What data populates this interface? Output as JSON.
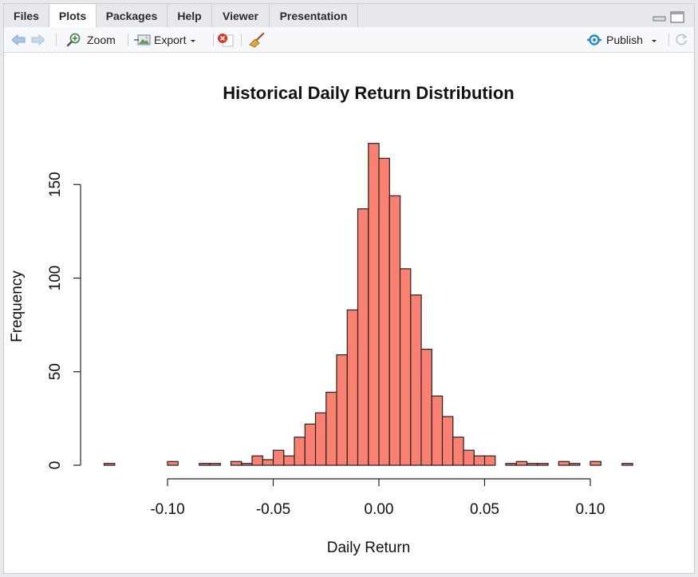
{
  "tabs": [
    {
      "label": "Files",
      "active": false
    },
    {
      "label": "Plots",
      "active": true
    },
    {
      "label": "Packages",
      "active": false
    },
    {
      "label": "Help",
      "active": false
    },
    {
      "label": "Viewer",
      "active": false
    },
    {
      "label": "Presentation",
      "active": false
    }
  ],
  "toolbar": {
    "zoom_label": "Zoom",
    "export_label": "Export",
    "publish_label": "Publish"
  },
  "colors": {
    "bar_fill": "#FA8072",
    "accent_blue": "#4a90d9"
  },
  "chart_data": {
    "type": "bar",
    "title": "Historical Daily Return Distribution",
    "xlabel": "Daily Return",
    "ylabel": "Frequency",
    "xlim": [
      -0.13,
      0.12
    ],
    "ylim": [
      0,
      172
    ],
    "bin_width": 0.005,
    "x_ticks": [
      -0.1,
      -0.05,
      0.0,
      0.05,
      0.1
    ],
    "x_tick_labels": [
      "-0.10",
      "-0.05",
      "0.00",
      "0.05",
      "0.10"
    ],
    "y_ticks": [
      0,
      50,
      100,
      150
    ],
    "y_tick_labels": [
      "0",
      "50",
      "100",
      "150"
    ],
    "bins": [
      {
        "x0": -0.13,
        "count": 1
      },
      {
        "x0": -0.1,
        "count": 2
      },
      {
        "x0": -0.085,
        "count": 1
      },
      {
        "x0": -0.08,
        "count": 1
      },
      {
        "x0": -0.07,
        "count": 2
      },
      {
        "x0": -0.065,
        "count": 1
      },
      {
        "x0": -0.06,
        "count": 5
      },
      {
        "x0": -0.055,
        "count": 3
      },
      {
        "x0": -0.05,
        "count": 8
      },
      {
        "x0": -0.045,
        "count": 5
      },
      {
        "x0": -0.04,
        "count": 15
      },
      {
        "x0": -0.035,
        "count": 22
      },
      {
        "x0": -0.03,
        "count": 28
      },
      {
        "x0": -0.025,
        "count": 39
      },
      {
        "x0": -0.02,
        "count": 59
      },
      {
        "x0": -0.015,
        "count": 83
      },
      {
        "x0": -0.01,
        "count": 137
      },
      {
        "x0": -0.005,
        "count": 172
      },
      {
        "x0": 0.0,
        "count": 164
      },
      {
        "x0": 0.005,
        "count": 144
      },
      {
        "x0": 0.01,
        "count": 105
      },
      {
        "x0": 0.015,
        "count": 91
      },
      {
        "x0": 0.02,
        "count": 62
      },
      {
        "x0": 0.025,
        "count": 37
      },
      {
        "x0": 0.03,
        "count": 26
      },
      {
        "x0": 0.035,
        "count": 15
      },
      {
        "x0": 0.04,
        "count": 8
      },
      {
        "x0": 0.045,
        "count": 5
      },
      {
        "x0": 0.05,
        "count": 5
      },
      {
        "x0": 0.06,
        "count": 1
      },
      {
        "x0": 0.065,
        "count": 2
      },
      {
        "x0": 0.07,
        "count": 1
      },
      {
        "x0": 0.075,
        "count": 1
      },
      {
        "x0": 0.085,
        "count": 2
      },
      {
        "x0": 0.09,
        "count": 1
      },
      {
        "x0": 0.1,
        "count": 2
      },
      {
        "x0": 0.115,
        "count": 1
      }
    ]
  }
}
